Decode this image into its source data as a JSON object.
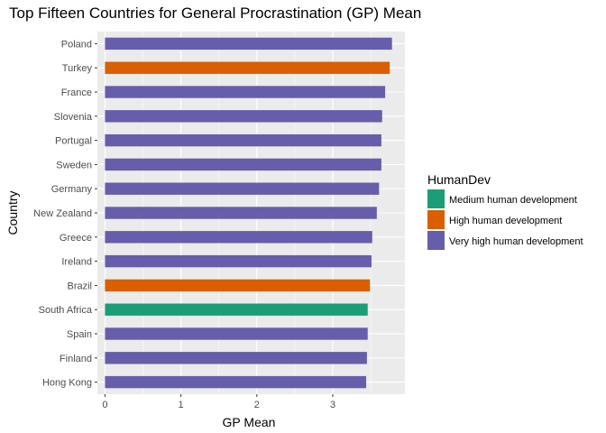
{
  "chart_data": {
    "type": "bar",
    "orientation": "horizontal",
    "title": "Top Fifteen Countries for General Procrastination (GP) Mean",
    "xlabel": "GP Mean",
    "ylabel": "Country",
    "xlim": [
      -0.1,
      3.95
    ],
    "x_ticks": [
      0,
      1,
      2,
      3
    ],
    "grid": true,
    "legend_position": "right",
    "legend": {
      "title": "HumanDev",
      "entries": [
        {
          "label": "Medium human development",
          "color": "#1b9e77"
        },
        {
          "label": "High human development",
          "color": "#d95f02"
        },
        {
          "label": "Very high human development",
          "color": "#665eab"
        }
      ]
    },
    "categories": [
      "Poland",
      "Turkey",
      "France",
      "Slovenia",
      "Portugal",
      "Sweden",
      "Germany",
      "New Zealand",
      "Greece",
      "Ireland",
      "Brazil",
      "South Africa",
      "Spain",
      "Finland",
      "Hong Kong"
    ],
    "values": [
      3.78,
      3.75,
      3.69,
      3.65,
      3.64,
      3.64,
      3.61,
      3.58,
      3.52,
      3.51,
      3.49,
      3.46,
      3.46,
      3.45,
      3.44
    ],
    "groups": [
      "Very high human development",
      "High human development",
      "Very high human development",
      "Very high human development",
      "Very high human development",
      "Very high human development",
      "Very high human development",
      "Very high human development",
      "Very high human development",
      "Very high human development",
      "High human development",
      "Medium human development",
      "Very high human development",
      "Very high human development",
      "Very high human development"
    ]
  }
}
